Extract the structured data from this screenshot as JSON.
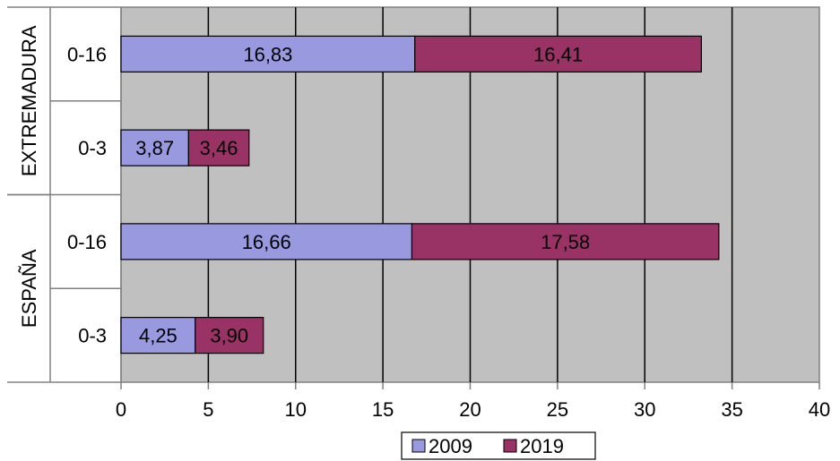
{
  "chart_data": {
    "type": "bar",
    "orientation": "horizontal",
    "stacked": true,
    "groups": [
      {
        "label": "EXTREMADURA",
        "categories": [
          {
            "label": "0-16",
            "values": [
              16.83,
              16.41
            ],
            "labels": [
              "16,83",
              "16,41"
            ]
          },
          {
            "label": "0-3",
            "values": [
              3.87,
              3.46
            ],
            "labels": [
              "3,87",
              "3,46"
            ]
          }
        ]
      },
      {
        "label": "ESPAÑA",
        "categories": [
          {
            "label": "0-16",
            "values": [
              16.66,
              17.58
            ],
            "labels": [
              "16,66",
              "17,58"
            ]
          },
          {
            "label": "0-3",
            "values": [
              4.25,
              3.9
            ],
            "labels": [
              "4,25",
              "3,90"
            ]
          }
        ]
      }
    ],
    "series": [
      {
        "name": "2009",
        "color": "#9999e0"
      },
      {
        "name": "2019",
        "color": "#993366"
      }
    ],
    "xlim": [
      0,
      40
    ],
    "xticks": [
      0,
      5,
      10,
      15,
      20,
      25,
      30,
      35,
      40
    ],
    "grid": true,
    "plot_background": "#c0c0c0",
    "legend_position": "bottom-center"
  }
}
